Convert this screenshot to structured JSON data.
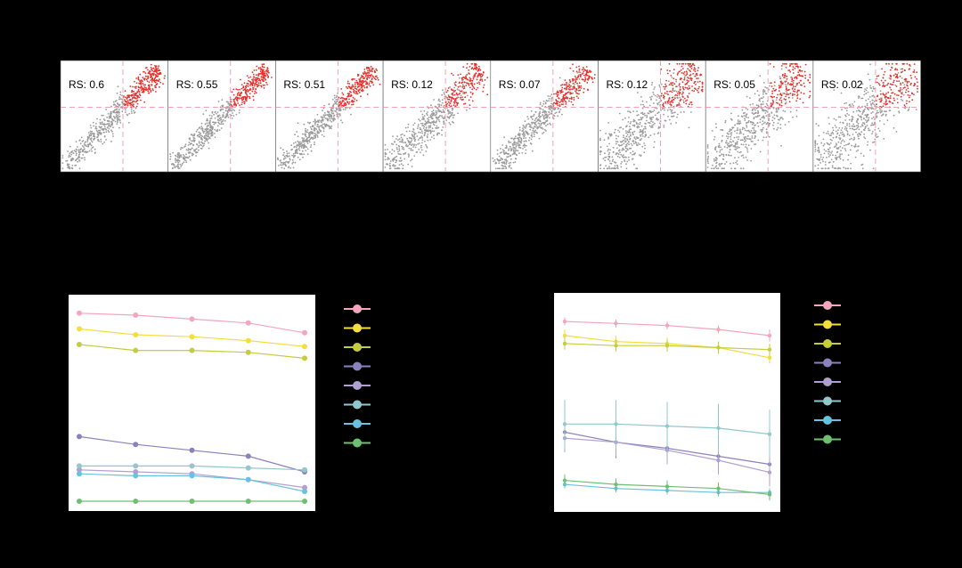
{
  "colors": {
    "background": "#000000",
    "panel": "#ffffff",
    "grey_points": "#9a9a9a",
    "red_points": "#e8302a",
    "threshold_lines": "#f2a3b3"
  },
  "chart_data": [
    {
      "type": "scatter",
      "panels": [
        {
          "label": "RS: 0.6",
          "rs": 0.6,
          "spread": 0.1,
          "red_fraction": 0.26
        },
        {
          "label": "RS: 0.55",
          "rs": 0.55,
          "spread": 0.09,
          "red_fraction": 0.3
        },
        {
          "label": "RS: 0.51",
          "rs": 0.51,
          "spread": 0.09,
          "red_fraction": 0.3
        },
        {
          "label": "RS: 0.12",
          "rs": 0.12,
          "spread": 0.14,
          "red_fraction": 0.1
        },
        {
          "label": "RS: 0.07",
          "rs": 0.07,
          "spread": 0.11,
          "red_fraction": 0.07
        },
        {
          "label": "RS: 0.12",
          "rs": 0.12,
          "spread": 0.2,
          "red_fraction": 0.09
        },
        {
          "label": "RS: 0.05",
          "rs": 0.05,
          "spread": 0.2,
          "red_fraction": 0.05
        },
        {
          "label": "RS: 0.02",
          "rs": 0.02,
          "spread": 0.24,
          "red_fraction": 0.02
        }
      ],
      "threshold": {
        "x": 0.58,
        "y": 0.42
      },
      "grid": false
    },
    {
      "type": "line",
      "x": [
        1,
        2,
        3,
        4,
        5
      ],
      "ylim": [
        0,
        1
      ],
      "series": [
        {
          "color": "#f4a6bd",
          "values": [
            0.96,
            0.95,
            0.93,
            0.91,
            0.86
          ]
        },
        {
          "color": "#f2de3d",
          "values": [
            0.88,
            0.85,
            0.84,
            0.82,
            0.79
          ]
        },
        {
          "color": "#c4cd3c",
          "values": [
            0.8,
            0.77,
            0.77,
            0.76,
            0.73
          ]
        },
        {
          "color": "#8a82bd",
          "values": [
            0.33,
            0.29,
            0.26,
            0.23,
            0.15
          ]
        },
        {
          "color": "#b09fd1",
          "values": [
            0.16,
            0.15,
            0.14,
            0.11,
            0.07
          ]
        },
        {
          "color": "#92c8cc",
          "values": [
            0.18,
            0.18,
            0.18,
            0.17,
            0.16
          ]
        },
        {
          "color": "#67c2e0",
          "values": [
            0.14,
            0.13,
            0.13,
            0.11,
            0.05
          ]
        },
        {
          "color": "#6fbf73",
          "values": [
            0.0,
            0.0,
            0.0,
            0.0,
            0.0
          ]
        }
      ],
      "legend": "right",
      "grid": false
    },
    {
      "type": "line",
      "x": [
        1,
        2,
        3,
        4,
        5
      ],
      "ylim": [
        0,
        1
      ],
      "error_bars": true,
      "series": [
        {
          "color": "#f4a6bd",
          "values": [
            0.92,
            0.91,
            0.9,
            0.88,
            0.85
          ],
          "error": [
            0.02,
            0.02,
            0.02,
            0.02,
            0.03
          ]
        },
        {
          "color": "#f2de3d",
          "values": [
            0.85,
            0.82,
            0.81,
            0.79,
            0.74
          ],
          "error": [
            0.03,
            0.03,
            0.03,
            0.03,
            0.03
          ]
        },
        {
          "color": "#c4cd3c",
          "values": [
            0.81,
            0.8,
            0.8,
            0.79,
            0.78
          ],
          "error": [
            0.03,
            0.03,
            0.03,
            0.03,
            0.03
          ]
        },
        {
          "color": "#8a82bd",
          "values": [
            0.37,
            0.32,
            0.29,
            0.25,
            0.21
          ],
          "error": [
            0.08,
            0.08,
            0.08,
            0.08,
            0.09
          ]
        },
        {
          "color": "#b09fd1",
          "values": [
            0.34,
            0.32,
            0.28,
            0.23,
            0.17
          ],
          "error": [
            0.07,
            0.07,
            0.07,
            0.07,
            0.07
          ]
        },
        {
          "color": "#92c8cc",
          "values": [
            0.41,
            0.41,
            0.4,
            0.39,
            0.36
          ],
          "error": [
            0.12,
            0.12,
            0.12,
            0.12,
            0.12
          ]
        },
        {
          "color": "#67c2e0",
          "values": [
            0.11,
            0.09,
            0.08,
            0.07,
            0.07
          ],
          "error": [
            0.02,
            0.02,
            0.02,
            0.02,
            0.02
          ]
        },
        {
          "color": "#6fbf73",
          "values": [
            0.13,
            0.11,
            0.1,
            0.09,
            0.06
          ],
          "error": [
            0.03,
            0.03,
            0.03,
            0.03,
            0.03
          ]
        }
      ],
      "legend": "right",
      "grid": false
    }
  ]
}
